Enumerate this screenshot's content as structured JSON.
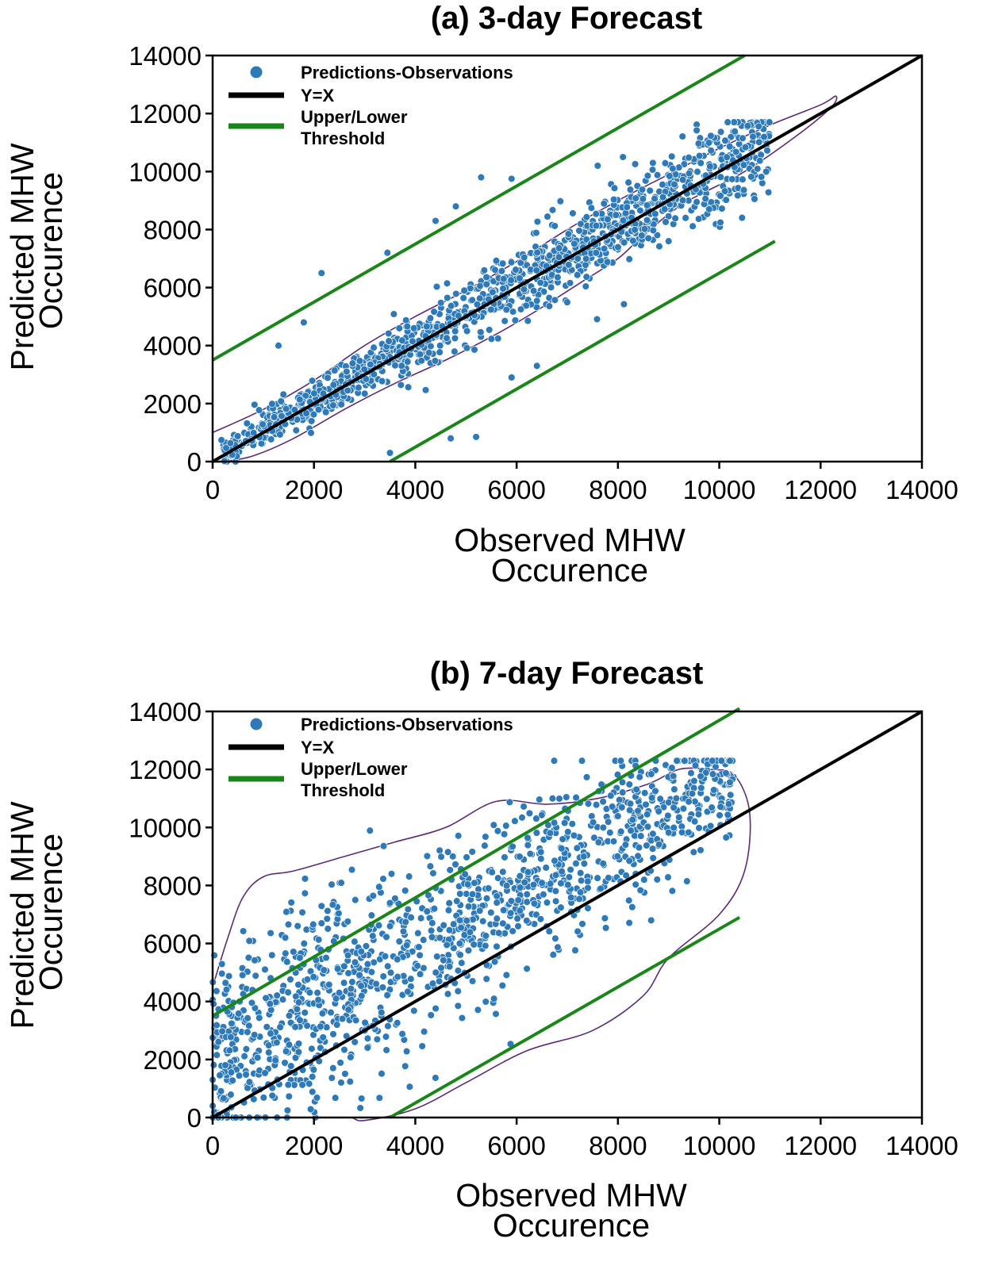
{
  "chart_data": [
    {
      "type": "scatter",
      "title": "(a) 3-day Forecast",
      "xlabel_lines": [
        "Observed MHW",
        "Occurence"
      ],
      "ylabel_lines": [
        "Predicted MHW",
        "Occurence"
      ],
      "xlim": [
        0,
        14000
      ],
      "ylim": [
        0,
        14000
      ],
      "xticks": [
        "0",
        "2000",
        "4000",
        "6000",
        "8000",
        "10000",
        "12000",
        "14000"
      ],
      "yticks": [
        "0",
        "2000",
        "4000",
        "6000",
        "8000",
        "10000",
        "12000",
        "14000"
      ],
      "grid": false,
      "legend_position": "top-left",
      "legend": [
        "Predictions-Observations",
        "Y=X",
        "Upper/Lower",
        "Threshold"
      ],
      "colors": {
        "points": "#2e7ab8",
        "identity": "#000000",
        "threshold": "#1a861a",
        "contour": "#5a2a78"
      },
      "identity_line": {
        "x": [
          0,
          14000
        ],
        "y": [
          0,
          14000
        ]
      },
      "upper_threshold": {
        "x": [
          0,
          10500
        ],
        "y": [
          3500,
          14000
        ]
      },
      "lower_threshold": {
        "x": [
          3500,
          11100
        ],
        "y": [
          0,
          7600
        ]
      },
      "contour": {
        "x": [
          0,
          1000,
          2000,
          3000,
          4000,
          5000,
          6000,
          7000,
          8000,
          9000,
          10000,
          11000,
          12000,
          12300,
          12200,
          11500,
          10500,
          9300,
          8500,
          8000,
          7200,
          6300,
          5500,
          4600,
          3600,
          2600,
          1600,
          800,
          200,
          0
        ],
        "y": [
          1000,
          1800,
          2800,
          4000,
          5000,
          5900,
          6900,
          8000,
          9000,
          9900,
          10800,
          11600,
          12300,
          12600,
          12200,
          11200,
          10000,
          8900,
          7800,
          7000,
          6100,
          5100,
          4300,
          3500,
          2700,
          1800,
          800,
          200,
          0,
          0
        ]
      },
      "points_spec": {
        "count": 1300,
        "x_range": [
          150,
          11000
        ],
        "y_equals_x_noise_sd_base": 250,
        "y_noise_sd_per_x": 0.055,
        "outliers": [
          {
            "x": 2150,
            "y": 6500
          },
          {
            "x": 3450,
            "y": 7200
          },
          {
            "x": 4400,
            "y": 8300
          },
          {
            "x": 5300,
            "y": 9800
          },
          {
            "x": 5900,
            "y": 9750
          },
          {
            "x": 4800,
            "y": 8800
          },
          {
            "x": 1800,
            "y": 4800
          },
          {
            "x": 1300,
            "y": 4000
          },
          {
            "x": 3500,
            "y": 300
          },
          {
            "x": 4700,
            "y": 800
          },
          {
            "x": 5200,
            "y": 850
          },
          {
            "x": 5900,
            "y": 2900
          },
          {
            "x": 6400,
            "y": 3300
          },
          {
            "x": 8600,
            "y": 7700
          },
          {
            "x": 9000,
            "y": 7600
          },
          {
            "x": 7600,
            "y": 10200
          },
          {
            "x": 8100,
            "y": 10500
          },
          {
            "x": 9800,
            "y": 8700
          }
        ]
      }
    },
    {
      "type": "scatter",
      "title": "(b) 7-day Forecast",
      "xlabel_lines": [
        "Observed MHW",
        "Occurence"
      ],
      "ylabel_lines": [
        "Predicted MHW",
        "Occurence"
      ],
      "xlim": [
        0,
        14000
      ],
      "ylim": [
        0,
        14000
      ],
      "xticks": [
        "0",
        "2000",
        "4000",
        "6000",
        "8000",
        "10000",
        "12000",
        "14000"
      ],
      "yticks": [
        "0",
        "2000",
        "4000",
        "6000",
        "8000",
        "10000",
        "12000",
        "14000"
      ],
      "grid": false,
      "legend_position": "top-left",
      "legend": [
        "Predictions-Observations",
        "Y=X",
        "Upper/Lower",
        "Threshold"
      ],
      "colors": {
        "points": "#2e7ab8",
        "identity": "#000000",
        "threshold": "#1a861a",
        "contour": "#5a2a78"
      },
      "identity_line": {
        "x": [
          0,
          14000
        ],
        "y": [
          0,
          14000
        ]
      },
      "upper_threshold": {
        "x": [
          0,
          10400
        ],
        "y": [
          3500,
          14100
        ]
      },
      "lower_threshold": {
        "x": [
          3500,
          10400
        ],
        "y": [
          0,
          6900
        ]
      },
      "contour": {
        "x": [
          0,
          300,
          600,
          1000,
          1600,
          2600,
          3600,
          4600,
          5600,
          6600,
          7600,
          8600,
          9200,
          9800,
          10300,
          10600,
          10500,
          10000,
          9000,
          8500,
          7500,
          6200,
          5000,
          4000,
          3000,
          2700,
          2000,
          1000,
          0
        ],
        "y": [
          4500,
          6200,
          7600,
          8300,
          8500,
          9000,
          9500,
          10000,
          10900,
          10800,
          11000,
          11500,
          12000,
          12000,
          11800,
          10500,
          8500,
          7000,
          5500,
          4200,
          3000,
          2300,
          1200,
          300,
          -100,
          0,
          0,
          0,
          100
        ]
      },
      "points_spec": {
        "count": 1300,
        "x_range": [
          0,
          10300
        ],
        "y_center_offset": 1700,
        "y_noise_sd": 1900,
        "y_min": 0,
        "y_max": 12300
      }
    }
  ]
}
